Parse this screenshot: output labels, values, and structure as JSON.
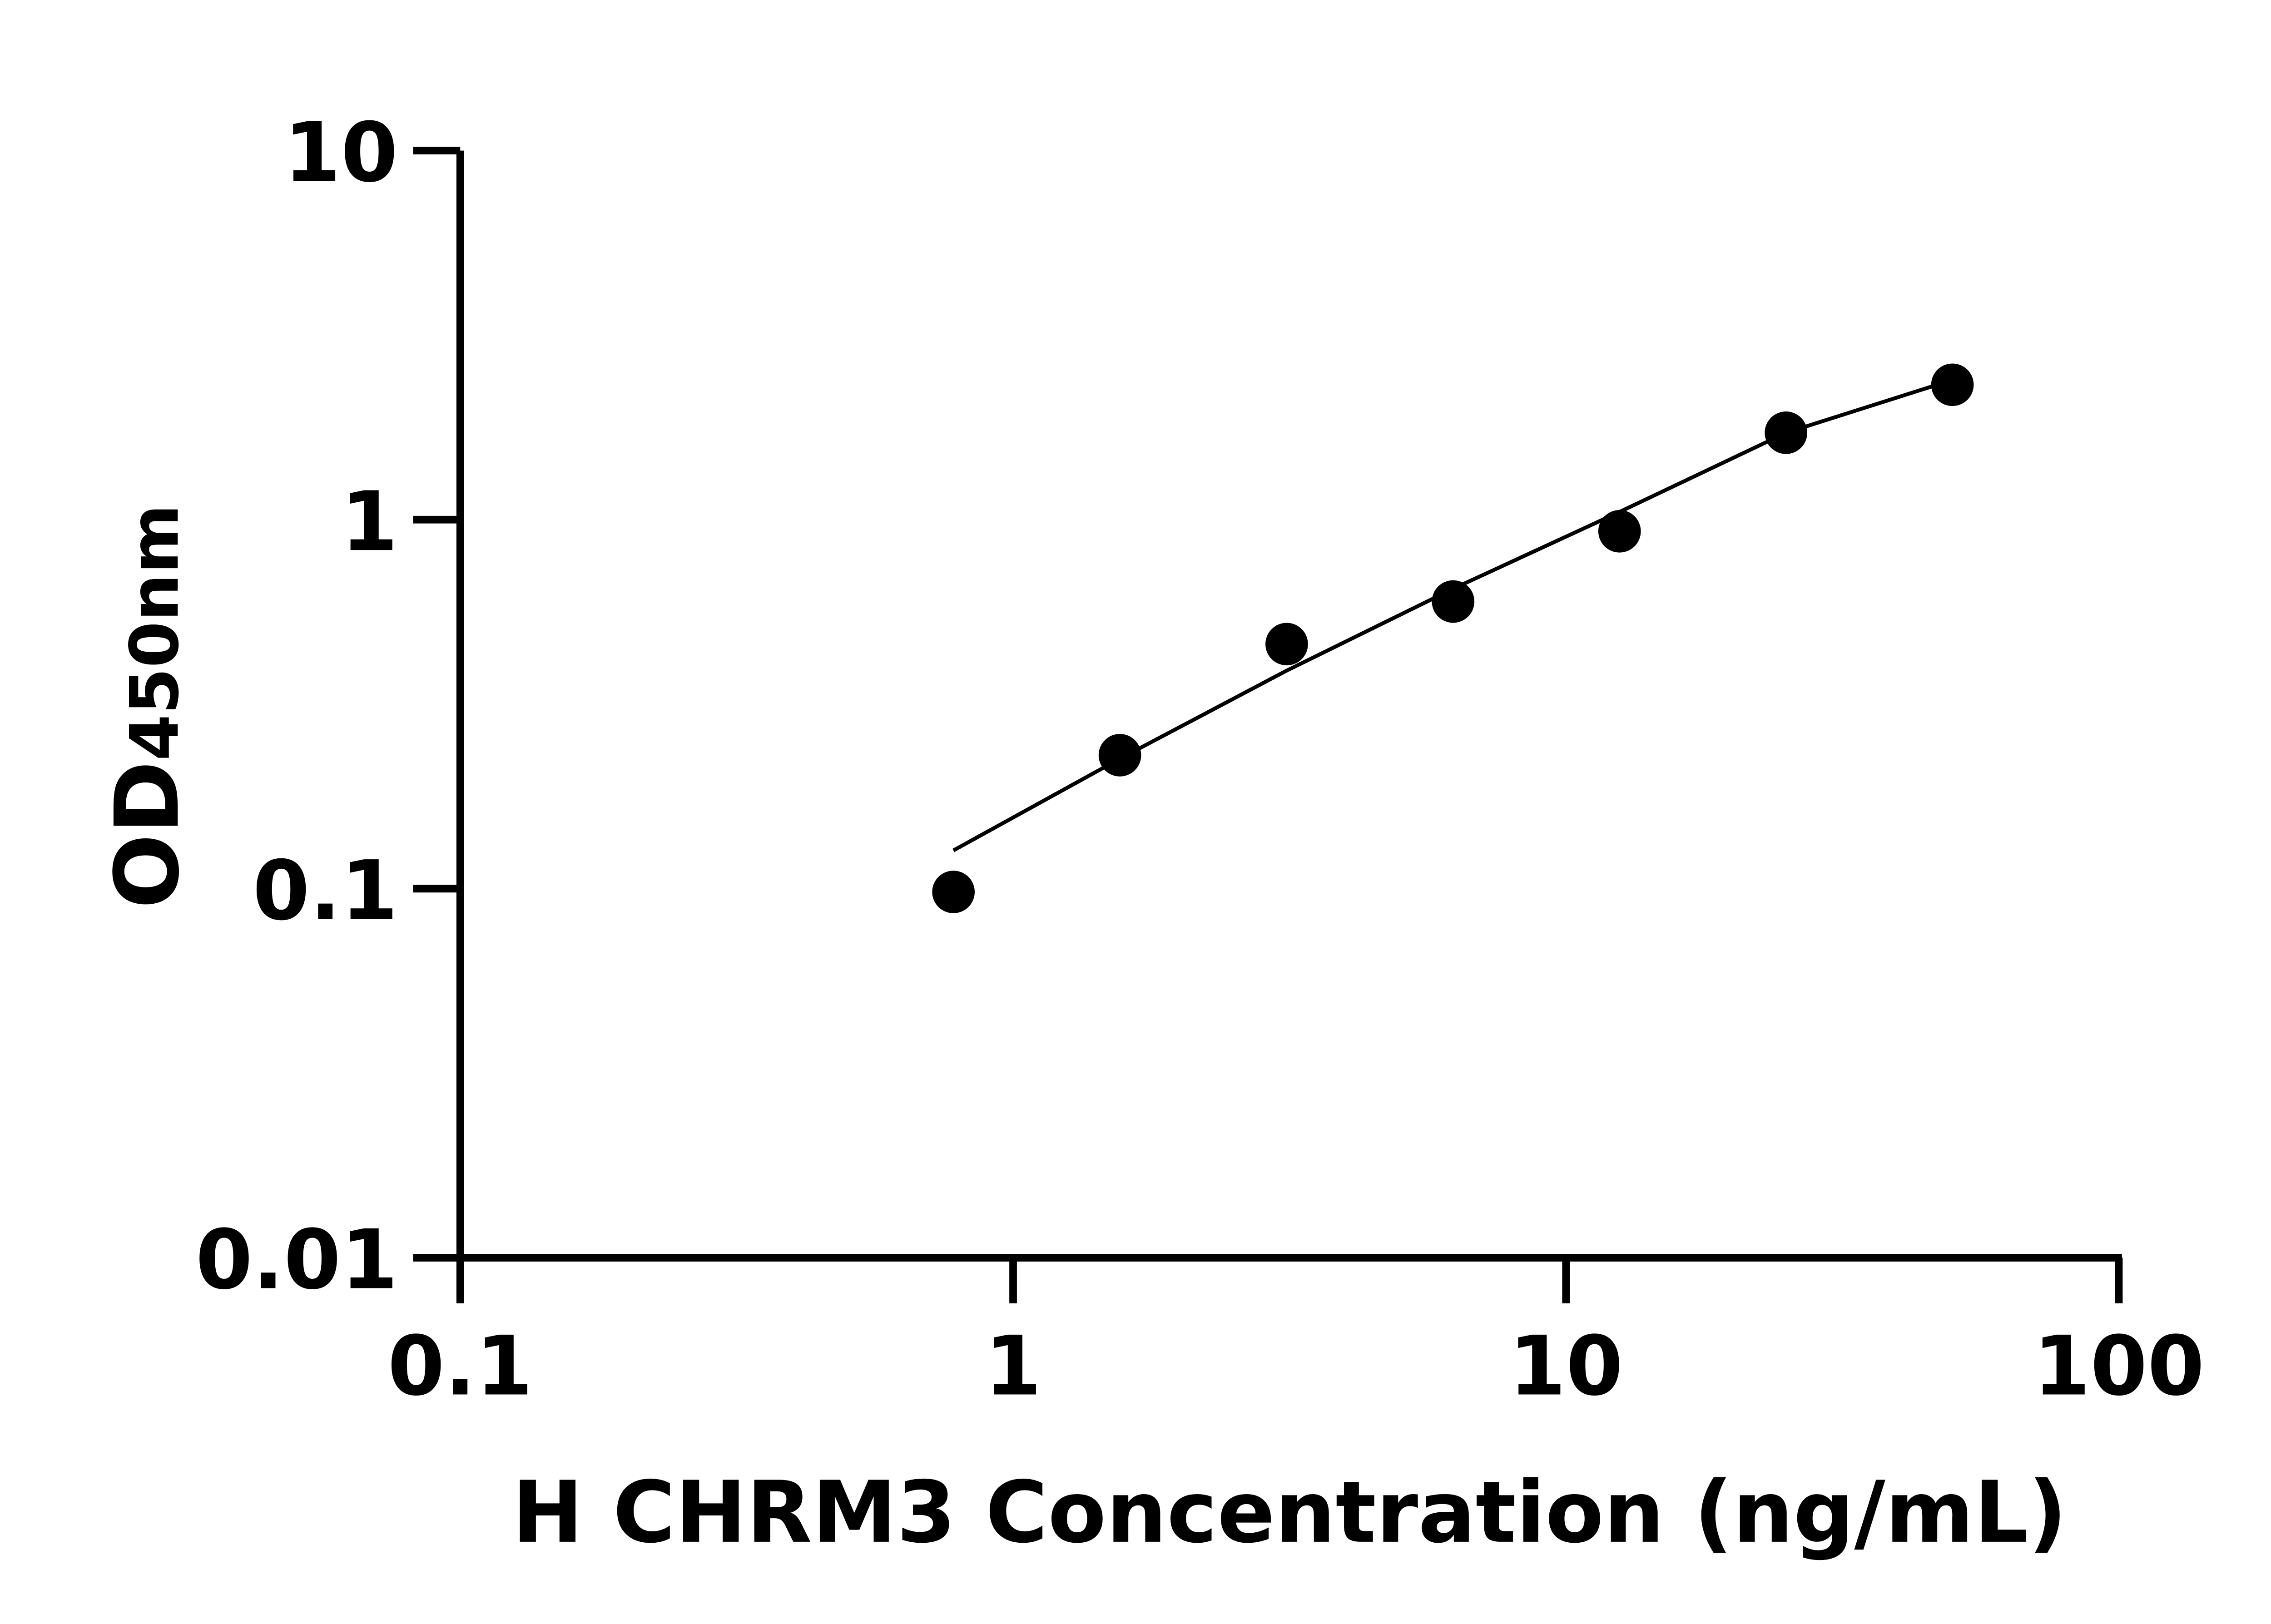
{
  "chart_data": {
    "type": "scatter",
    "title": "",
    "xlabel": "H CHRM3 Concentration (ng/mL)",
    "ylabel_main": "OD",
    "ylabel_sub": "450nm",
    "x_scale": "log",
    "y_scale": "log",
    "xlim": [
      0.1,
      100
    ],
    "ylim": [
      0.01,
      10
    ],
    "x_ticks": [
      0.1,
      1,
      10,
      100
    ],
    "x_tick_labels": [
      "0.1",
      "1",
      "10",
      "100"
    ],
    "y_ticks": [
      0.01,
      0.1,
      1,
      10
    ],
    "y_tick_labels": [
      "0.01",
      "0.1",
      "1",
      "10"
    ],
    "grid": false,
    "legend": "none",
    "points": {
      "x": [
        0.78,
        1.56,
        3.125,
        6.25,
        12.5,
        25,
        50
      ],
      "y": [
        0.098,
        0.23,
        0.46,
        0.6,
        0.93,
        1.72,
        2.32
      ]
    },
    "fit_curve": {
      "x": [
        0.78,
        1.56,
        3.125,
        6.25,
        12.5,
        25,
        50
      ],
      "y": [
        0.127,
        0.225,
        0.39,
        0.65,
        1.05,
        1.72,
        2.39
      ]
    },
    "colors": {
      "points": "#000000",
      "line": "#000000",
      "axes": "#000000"
    }
  }
}
